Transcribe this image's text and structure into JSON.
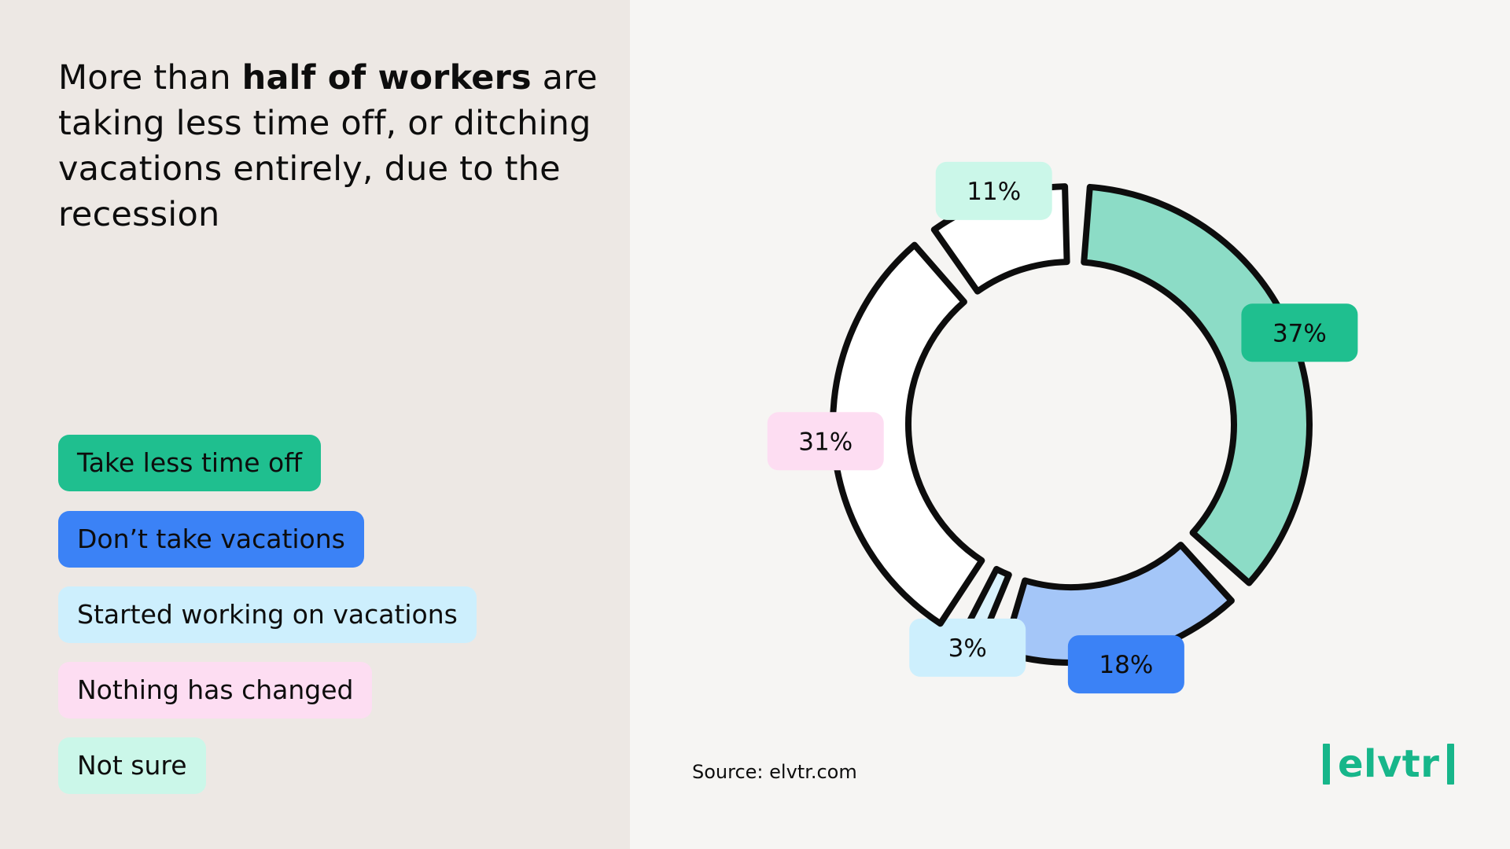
{
  "headline": {
    "prefix": "More than ",
    "bold": "half of workers",
    "rest": " are taking less time off, or ditching vacations entirely, due to the recession"
  },
  "legend": [
    {
      "label": "Take less time off",
      "color": "#1fbf8f"
    },
    {
      "label": "Don’t take vacations",
      "color": "#3b82f6"
    },
    {
      "label": "Started working on vacations",
      "color": "#cdeffd"
    },
    {
      "label": "Nothing has changed",
      "color": "#fdddf2"
    },
    {
      "label": "Not sure",
      "color": "#cbf7e9"
    }
  ],
  "chart_data": {
    "type": "pie",
    "style": "donut",
    "categories": [
      "Take less time off",
      "Don’t take vacations",
      "Started working on vacations",
      "Nothing has changed",
      "Not sure"
    ],
    "values": [
      37,
      18,
      3,
      31,
      11
    ],
    "labels": [
      "37%",
      "18%",
      "3%",
      "31%",
      "11%"
    ],
    "segment_fills": [
      "#8cdcc6",
      "#a4c6f8",
      "#d9f2fc",
      "#ffffff",
      "#ffffff"
    ],
    "label_colors": [
      "#1fbf8f",
      "#3b82f6",
      "#cdeffd",
      "#fdddf2",
      "#cbf7e9"
    ]
  },
  "source": "Source: elvtr.com",
  "logo": {
    "text": "elvtr",
    "color": "#17b68a"
  }
}
